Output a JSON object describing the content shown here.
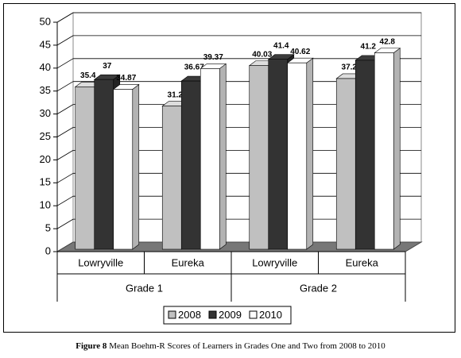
{
  "chart_data": {
    "type": "bar3d",
    "categories": [
      "Lowryville",
      "Eureka",
      "Lowryville",
      "Eureka"
    ],
    "group_labels": [
      "Grade 1",
      "Grade 2"
    ],
    "series": [
      {
        "name": "2008",
        "color": "#c0c0c0",
        "values": [
          35.4,
          31.2,
          40.03,
          37.2
        ]
      },
      {
        "name": "2009",
        "color": "#333333",
        "values": [
          37,
          36.67,
          41.4,
          41.2
        ]
      },
      {
        "name": "2010",
        "color": "#ffffff",
        "values": [
          34.87,
          39.37,
          40.62,
          42.8
        ]
      }
    ],
    "ylim": [
      0,
      50
    ],
    "yticks": [
      0,
      5,
      10,
      15,
      20,
      25,
      30,
      35,
      40,
      45,
      50
    ],
    "grid": true
  },
  "caption": {
    "label": "Figure 8",
    "text": "Mean Boehm-R Scores of Learners in Grades One and Two from 2008 to 2010"
  }
}
